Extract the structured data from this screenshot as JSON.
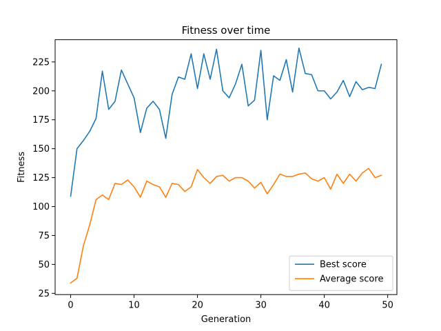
{
  "chart_data": {
    "type": "line",
    "title": "Fitness over time",
    "xlabel": "Generation",
    "ylabel": "Fitness",
    "xlim": [
      -2.45,
      51.45
    ],
    "ylim": [
      23.9,
      244.2
    ],
    "xticks": [
      0,
      10,
      20,
      30,
      40,
      50
    ],
    "yticks": [
      25,
      50,
      75,
      100,
      125,
      150,
      175,
      200,
      225
    ],
    "grid": false,
    "legend_position": "bottom-right",
    "x": [
      0,
      1,
      2,
      3,
      4,
      5,
      6,
      7,
      8,
      9,
      10,
      11,
      12,
      13,
      14,
      15,
      16,
      17,
      18,
      19,
      20,
      21,
      22,
      23,
      24,
      25,
      26,
      27,
      28,
      29,
      30,
      31,
      32,
      33,
      34,
      35,
      36,
      37,
      38,
      39,
      40,
      41,
      42,
      43,
      44,
      45,
      46,
      47,
      48,
      49
    ],
    "series": [
      {
        "name": "Best score",
        "color": "#1f77b4",
        "values": [
          109,
          150,
          157,
          165,
          176,
          217,
          184,
          191,
          218,
          206,
          194,
          164,
          185,
          191,
          184,
          159,
          197,
          212,
          210,
          232,
          202,
          232,
          210,
          236,
          200,
          194,
          206,
          223,
          187,
          192,
          235,
          175,
          213,
          209,
          227,
          199,
          237,
          215,
          214,
          200,
          200,
          193,
          199,
          209,
          195,
          208,
          201,
          203,
          202,
          223
        ]
      },
      {
        "name": "Average score",
        "color": "#ff7f0e",
        "values": [
          34,
          38,
          66,
          84,
          106,
          110,
          106,
          120,
          119,
          123,
          117,
          108,
          122,
          119,
          117,
          108,
          120,
          119,
          113,
          117,
          132,
          125,
          120,
          126,
          127,
          122,
          125,
          125,
          122,
          116,
          121,
          111,
          119,
          128,
          126,
          126,
          128,
          129,
          124,
          122,
          125,
          115,
          128,
          120,
          128,
          122,
          129,
          133,
          125,
          127
        ]
      }
    ]
  }
}
